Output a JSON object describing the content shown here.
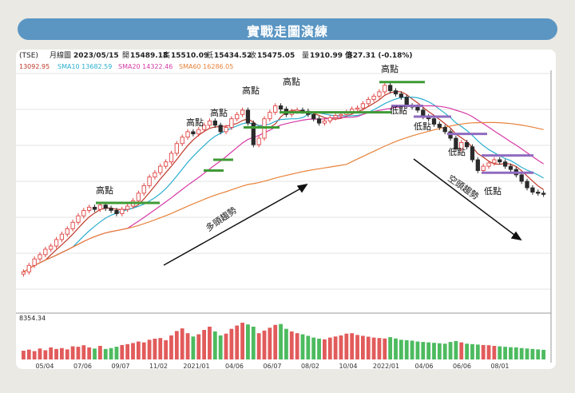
{
  "banner_title": "實戰走圖演練",
  "header": {
    "symbol": "(TSE)",
    "period": "月線圖",
    "date": "2023/05/15",
    "open_label": "開",
    "open": "15489.18",
    "high_label": "高",
    "high": "15510.09",
    "low_label": "低",
    "low": "15434.52",
    "close_label": "收",
    "close": "15475.05",
    "volume_label": "量",
    "volume": "1910.99 億",
    "change": "-27.31 (-0.18%)"
  },
  "ma_legend": [
    {
      "label": "13092.95",
      "color": "#c0392b"
    },
    {
      "label": "SMA10 13682.59",
      "color": "#2aaecf"
    },
    {
      "label": "SMA20 14322.46",
      "color": "#d63aa6"
    },
    {
      "label": "SMA60 16286.05",
      "color": "#e8823a"
    }
  ],
  "volume_label": "8354.34",
  "annotations": {
    "highs": [
      "高點",
      "高點",
      "高點",
      "高點",
      "高點",
      "高點"
    ],
    "lows": [
      "低點",
      "低點",
      "低點",
      "低點",
      "低點"
    ],
    "bull_trend": "多頭趨勢",
    "bear_trend": "空頭趨勢"
  },
  "chart_data": {
    "type": "candlestick",
    "x_ticks": [
      "05/04",
      "07/06",
      "09/07",
      "11/02",
      "2021/01",
      "04/06",
      "06/07",
      "08/02",
      "10/04",
      "2022/01",
      "04/06",
      "06/06",
      "08/01"
    ],
    "series": {
      "close": [
        9800,
        10100,
        10400,
        10600,
        10850,
        11000,
        11300,
        11550,
        11800,
        12100,
        12400,
        12650,
        12800,
        12700,
        12900,
        12750,
        12650,
        12500,
        12700,
        12850,
        13100,
        13450,
        13800,
        14200,
        14400,
        14700,
        14900,
        15300,
        15750,
        16050,
        16300,
        16200,
        16400,
        16600,
        16800,
        16600,
        16300,
        16500,
        16900,
        17100,
        17300,
        16700,
        15700,
        16000,
        16900,
        17200,
        17500,
        17350,
        17100,
        17250,
        17300,
        17250,
        17100,
        16900,
        16700,
        16800,
        16950,
        17050,
        17100,
        17200,
        17350,
        17400,
        17600,
        17800,
        17950,
        18150,
        18450,
        18200,
        18050,
        17900,
        17500,
        17450,
        17300,
        17000,
        16900,
        16650,
        16500,
        16300,
        16000,
        15500,
        15800,
        15600,
        15000,
        14500,
        14700,
        14850,
        15000,
        14900,
        14700,
        14550,
        14300,
        14000,
        13700,
        13500,
        13450,
        13400
      ],
      "open": [
        9700,
        9800,
        10100,
        10400,
        10600,
        10850,
        11000,
        11300,
        11550,
        11800,
        12100,
        12400,
        12650,
        12800,
        12700,
        12900,
        12750,
        12650,
        12500,
        12700,
        12850,
        13100,
        13450,
        13800,
        14200,
        14400,
        14700,
        14900,
        15300,
        15750,
        16050,
        16300,
        16200,
        16400,
        16600,
        16800,
        16600,
        16300,
        16500,
        16900,
        17100,
        17300,
        16700,
        15700,
        16000,
        16900,
        17200,
        17500,
        17350,
        17100,
        17250,
        17300,
        17250,
        17100,
        16900,
        16700,
        16800,
        16950,
        17050,
        17100,
        17200,
        17350,
        17400,
        17600,
        17800,
        17950,
        18150,
        18450,
        18200,
        18050,
        17900,
        17500,
        17450,
        17300,
        17000,
        16900,
        16650,
        16500,
        16300,
        16000,
        15500,
        15800,
        15600,
        15000,
        14500,
        14700,
        14850,
        15000,
        14900,
        14700,
        14550,
        14300,
        14000,
        13700,
        13500,
        13450
      ],
      "volume": [
        40,
        45,
        38,
        50,
        42,
        55,
        48,
        52,
        46,
        60,
        58,
        65,
        55,
        50,
        62,
        48,
        52,
        58,
        66,
        70,
        75,
        82,
        78,
        90,
        95,
        98,
        88,
        110,
        130,
        142,
        120,
        105,
        115,
        135,
        150,
        128,
        110,
        118,
        140,
        155,
        168,
        160,
        150,
        120,
        132,
        145,
        158,
        162,
        140,
        128,
        120,
        115,
        108,
        100,
        95,
        92,
        100,
        105,
        110,
        118,
        120,
        112,
        108,
        104,
        100,
        98,
        96,
        102,
        96,
        90,
        88,
        86,
        82,
        80,
        78,
        76,
        74,
        72,
        80,
        84,
        78,
        72,
        70,
        68,
        66,
        65,
        62,
        60,
        58,
        56,
        55,
        52,
        50,
        48,
        46,
        44
      ]
    },
    "high_levels": [
      13000,
      14500,
      15000,
      16500,
      17200,
      18600
    ],
    "low_levels": [
      17500,
      17000,
      16200,
      15200,
      14400
    ]
  },
  "colors": {
    "up": "#e04545",
    "down": "#2a2a2a",
    "vol_up": "#e25b5b",
    "vol_down": "#4dbb5f",
    "high_line": "#3f9a36",
    "low_line": "#8f6bbf"
  }
}
